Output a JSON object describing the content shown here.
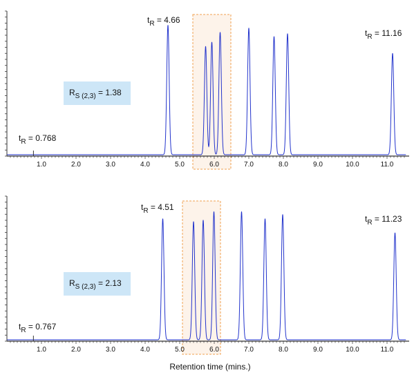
{
  "chart_data": [
    {
      "type": "line",
      "panel": "top",
      "xlim": [
        0,
        11.6
      ],
      "x_ticks": [
        "1.0",
        "2.0",
        "3.0",
        "4.0",
        "5.0",
        "6.0",
        "7.0",
        "8.0",
        "9.0",
        "10.0",
        "11.0"
      ],
      "peaks": [
        {
          "x": 4.66,
          "height": 0.92
        },
        {
          "x": 5.75,
          "height": 0.77
        },
        {
          "x": 5.93,
          "height": 0.8
        },
        {
          "x": 6.17,
          "height": 0.87
        },
        {
          "x": 7.0,
          "height": 0.9
        },
        {
          "x": 7.73,
          "height": 0.84
        },
        {
          "x": 8.12,
          "height": 0.86
        },
        {
          "x": 11.16,
          "height": 0.72
        }
      ],
      "highlight_x": [
        5.38,
        6.48
      ],
      "void_marker_x": 0.768,
      "annotations": {
        "t0": {
          "label": "t",
          "sub": "R",
          "value": " = 0.768"
        },
        "t1": {
          "label": "t",
          "sub": "R",
          "value": " = 4.66"
        },
        "t2": {
          "label": "t",
          "sub": "R",
          "value": " = 11.16"
        },
        "rs": {
          "label": "R",
          "sub": "S (2,3)",
          "value": " = 1.38"
        }
      }
    },
    {
      "type": "line",
      "panel": "bottom",
      "xlim": [
        0,
        11.6
      ],
      "x_ticks": [
        "1.0",
        "2.0",
        "3.0",
        "4.0",
        "5.0",
        "6.0",
        "7.0",
        "8.0",
        "9.0",
        "10.0",
        "11.0"
      ],
      "peaks": [
        {
          "x": 4.51,
          "height": 0.86
        },
        {
          "x": 5.4,
          "height": 0.84
        },
        {
          "x": 5.68,
          "height": 0.85
        },
        {
          "x": 5.99,
          "height": 0.91
        },
        {
          "x": 6.79,
          "height": 0.91
        },
        {
          "x": 7.47,
          "height": 0.86
        },
        {
          "x": 7.98,
          "height": 0.89
        },
        {
          "x": 11.23,
          "height": 0.76
        }
      ],
      "highlight_x": [
        5.08,
        6.18
      ],
      "void_marker_x": 0.767,
      "annotations": {
        "t0": {
          "label": "t",
          "sub": "R",
          "value": " = 0.767"
        },
        "t1": {
          "label": "t",
          "sub": "R",
          "value": " = 4.51"
        },
        "t2": {
          "label": "t",
          "sub": "R",
          "value": " = 11.23"
        },
        "rs": {
          "label": "R",
          "sub": "S (2,3)",
          "value": " = 2.13"
        }
      }
    }
  ],
  "xlabel": "Retention time (mins.)",
  "colors": {
    "trace": "#2233cc",
    "highlight_fill": "#fdf3ea",
    "highlight_border": "#f0a050",
    "rs_box": "#cde6f7",
    "axis": "#333333"
  }
}
